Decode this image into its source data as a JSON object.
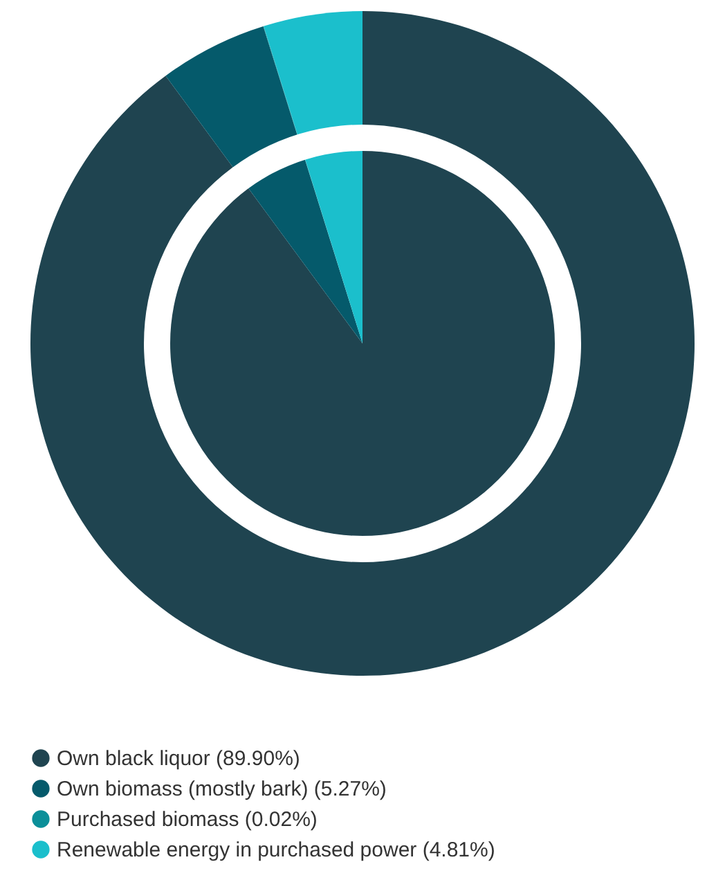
{
  "chart_data": {
    "type": "donut",
    "categories": [
      "Own black liquor (89.90%)",
      "Own biomass (mostly bark) (5.27%)",
      "Purchased biomass (0.02%)",
      "Renewable energy in purchased power (4.81%)"
    ],
    "values": [
      89.9,
      5.27,
      0.02,
      4.81
    ],
    "colors": [
      "#1f4450",
      "#055a6b",
      "#0b8f99",
      "#1bbfcc"
    ],
    "legend": "bottom"
  }
}
